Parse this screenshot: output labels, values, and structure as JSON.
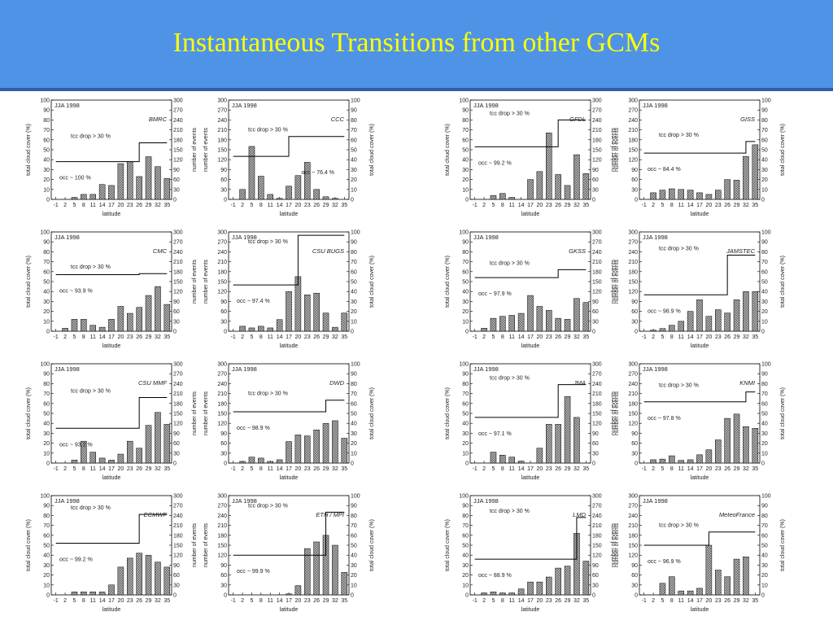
{
  "title": "Instantaneous Transitions from other GCMs",
  "colors": {
    "header_bg": "#4f93e6",
    "title_text": "#ffff00",
    "bar_fill": "#555555"
  },
  "panel_common": {
    "season": "JJA 1998",
    "xlabel": "latitude",
    "ylabel_left": "total cloud cover (%)",
    "ylabel_right_events": "number of events",
    "ylabel_right_cloud": "total cloud cover (%)",
    "tcc_label": "tcc drop > 30 %",
    "x_ticks": [
      "-1",
      "2",
      "5",
      "8",
      "11",
      "14",
      "17",
      "20",
      "23",
      "26",
      "29",
      "32",
      "35"
    ],
    "left_ticks": [
      "0",
      "10",
      "20",
      "30",
      "40",
      "50",
      "60",
      "70",
      "80",
      "90",
      "100"
    ],
    "events_ticks": [
      "0",
      "30",
      "60",
      "90",
      "120",
      "150",
      "180",
      "210",
      "240",
      "270",
      "300"
    ]
  },
  "chart_data": [
    {
      "type": "bar",
      "model": "BMRC",
      "occ": "occ ~ 100 %",
      "right_axis": "events",
      "ylim": [
        0,
        100
      ],
      "right_ylim": [
        0,
        300
      ],
      "categories": [
        "-1",
        "2",
        "5",
        "8",
        "11",
        "14",
        "17",
        "20",
        "23",
        "26",
        "29",
        "32",
        "35"
      ],
      "values": [
        0,
        0,
        2,
        5,
        5,
        15,
        14,
        36,
        38,
        23,
        43,
        33,
        21
      ],
      "step": {
        "low": 38,
        "high": 57,
        "at": "26"
      }
    },
    {
      "type": "bar",
      "model": "CCC",
      "occ": "occ ~ 76.4 %",
      "right_axis": "cloud",
      "ylim": [
        0,
        300
      ],
      "right_ylim": [
        0,
        100
      ],
      "categories": [
        "-1",
        "2",
        "5",
        "8",
        "11",
        "14",
        "17",
        "20",
        "23",
        "26",
        "29",
        "32",
        "35"
      ],
      "values": [
        0,
        30,
        160,
        70,
        15,
        3,
        40,
        72,
        112,
        30,
        8,
        3,
        0
      ],
      "step": {
        "low": 130,
        "high": 190,
        "at": "17"
      }
    },
    {
      "type": "bar",
      "model": "GFDL",
      "occ": "occ ~ 99.2 %",
      "right_axis": "events",
      "ylim": [
        0,
        100
      ],
      "right_ylim": [
        0,
        300
      ],
      "categories": [
        "-1",
        "2",
        "5",
        "8",
        "11",
        "14",
        "17",
        "20",
        "23",
        "26",
        "29",
        "32",
        "35"
      ],
      "values": [
        0,
        0,
        4,
        6,
        2,
        0,
        20,
        28,
        67,
        25,
        14,
        45,
        26
      ],
      "step": {
        "low": 53,
        "high": 80,
        "at": "26"
      }
    },
    {
      "type": "bar",
      "model": "GISS",
      "occ": "occ ~ 84.4 %",
      "right_axis": "cloud",
      "ylim": [
        0,
        300
      ],
      "right_ylim": [
        0,
        100
      ],
      "categories": [
        "-1",
        "2",
        "5",
        "8",
        "11",
        "14",
        "17",
        "20",
        "23",
        "26",
        "29",
        "32",
        "35"
      ],
      "values": [
        0,
        20,
        28,
        32,
        30,
        28,
        20,
        15,
        28,
        60,
        58,
        130,
        165
      ],
      "step": {
        "low": 140,
        "high": 175,
        "at": "32"
      }
    },
    {
      "type": "bar",
      "model": "CMC",
      "occ": "occ ~ 93.9 %",
      "right_axis": "events",
      "ylim": [
        0,
        100
      ],
      "right_ylim": [
        0,
        300
      ],
      "categories": [
        "-1",
        "2",
        "5",
        "8",
        "11",
        "14",
        "17",
        "20",
        "23",
        "26",
        "29",
        "32",
        "35"
      ],
      "values": [
        0,
        3,
        12,
        12,
        6,
        4,
        12,
        25,
        18,
        24,
        36,
        45,
        27
      ],
      "step": {
        "low": 57,
        "high": 58,
        "at": "26"
      }
    },
    {
      "type": "bar",
      "model": "CSU BUGS",
      "occ": "occ ~ 97.4 %",
      "right_axis": "cloud",
      "ylim": [
        0,
        300
      ],
      "right_ylim": [
        0,
        100
      ],
      "categories": [
        "-1",
        "2",
        "5",
        "8",
        "11",
        "14",
        "17",
        "20",
        "23",
        "26",
        "29",
        "32",
        "35"
      ],
      "values": [
        0,
        15,
        10,
        15,
        10,
        35,
        120,
        165,
        110,
        115,
        55,
        12,
        55
      ],
      "step": {
        "low": 140,
        "high": 290,
        "at": "20"
      }
    },
    {
      "type": "bar",
      "model": "GKSS",
      "occ": "occ ~ 97.9 %",
      "right_axis": "events",
      "ylim": [
        0,
        100
      ],
      "right_ylim": [
        0,
        300
      ],
      "categories": [
        "-1",
        "2",
        "5",
        "8",
        "11",
        "14",
        "17",
        "20",
        "23",
        "26",
        "29",
        "32",
        "35"
      ],
      "values": [
        0,
        3,
        13,
        15,
        16,
        18,
        36,
        25,
        21,
        13,
        12,
        33,
        29
      ],
      "step": {
        "low": 54,
        "high": 62,
        "at": "26"
      }
    },
    {
      "type": "bar",
      "model": "JAMSTEC",
      "occ": "occ ~ 98.9 %",
      "right_axis": "cloud",
      "ylim": [
        0,
        300
      ],
      "right_ylim": [
        0,
        100
      ],
      "categories": [
        "-1",
        "2",
        "5",
        "8",
        "11",
        "14",
        "17",
        "20",
        "23",
        "26",
        "29",
        "32",
        "35"
      ],
      "values": [
        0,
        3,
        8,
        18,
        30,
        60,
        95,
        45,
        65,
        55,
        95,
        120,
        120
      ],
      "step": {
        "low": 110,
        "high": 230,
        "at": "26"
      }
    },
    {
      "type": "bar",
      "model": "CSU MMF",
      "occ": "occ ~ 93.2 %",
      "right_axis": "events",
      "ylim": [
        0,
        100
      ],
      "right_ylim": [
        0,
        300
      ],
      "categories": [
        "-1",
        "2",
        "5",
        "8",
        "11",
        "14",
        "17",
        "20",
        "23",
        "26",
        "29",
        "32",
        "35"
      ],
      "values": [
        0,
        0,
        3,
        22,
        11,
        5,
        3,
        9,
        22,
        15,
        38,
        51,
        39
      ],
      "step": {
        "low": 35,
        "high": 66,
        "at": "26"
      }
    },
    {
      "type": "bar",
      "model": "DWD",
      "occ": "occ ~ 98.9 %",
      "right_axis": "cloud",
      "ylim": [
        0,
        300
      ],
      "right_ylim": [
        0,
        100
      ],
      "categories": [
        "-1",
        "2",
        "5",
        "8",
        "11",
        "14",
        "17",
        "20",
        "23",
        "26",
        "29",
        "32",
        "35"
      ],
      "values": [
        0,
        5,
        18,
        15,
        5,
        10,
        65,
        85,
        82,
        100,
        120,
        128,
        75
      ],
      "step": {
        "low": 155,
        "high": 190,
        "at": "29"
      }
    },
    {
      "type": "bar",
      "model": "JMA",
      "occ": "occ ~ 97.1 %",
      "right_axis": "events",
      "ylim": [
        0,
        100
      ],
      "right_ylim": [
        0,
        300
      ],
      "categories": [
        "-1",
        "2",
        "5",
        "8",
        "11",
        "14",
        "17",
        "20",
        "23",
        "26",
        "29",
        "32",
        "35"
      ],
      "values": [
        0,
        0,
        11,
        8,
        6,
        2,
        0,
        15,
        39,
        39,
        67,
        46,
        0
      ],
      "step": {
        "low": 46,
        "high": 79,
        "at": "26"
      }
    },
    {
      "type": "bar",
      "model": "KNMI",
      "occ": "occ ~ 97.8 %",
      "right_axis": "cloud",
      "ylim": [
        0,
        300
      ],
      "right_ylim": [
        0,
        100
      ],
      "categories": [
        "-1",
        "2",
        "5",
        "8",
        "11",
        "14",
        "17",
        "20",
        "23",
        "26",
        "29",
        "32",
        "35"
      ],
      "values": [
        0,
        10,
        12,
        22,
        8,
        10,
        25,
        40,
        70,
        135,
        148,
        110,
        105
      ],
      "step": {
        "low": 185,
        "high": 215,
        "at": "32"
      }
    },
    {
      "type": "bar",
      "model": "ECMWF",
      "occ": "occ ~ 99.2 %",
      "right_axis": "events",
      "ylim": [
        0,
        100
      ],
      "right_ylim": [
        0,
        300
      ],
      "categories": [
        "-1",
        "2",
        "5",
        "8",
        "11",
        "14",
        "17",
        "20",
        "23",
        "26",
        "29",
        "32",
        "35"
      ],
      "values": [
        0,
        0,
        3,
        3,
        3,
        3,
        10,
        28,
        37,
        42,
        40,
        33,
        28
      ],
      "step": {
        "low": 52,
        "high": 81,
        "at": "26"
      }
    },
    {
      "type": "bar",
      "model": "ETH / MPI",
      "occ": "occ ~ 99.9 %",
      "right_axis": "cloud",
      "ylim": [
        0,
        300
      ],
      "right_ylim": [
        0,
        100
      ],
      "categories": [
        "-1",
        "2",
        "5",
        "8",
        "11",
        "14",
        "17",
        "20",
        "23",
        "26",
        "29",
        "32",
        "35"
      ],
      "values": [
        0,
        0,
        0,
        0,
        0,
        0,
        3,
        28,
        140,
        160,
        180,
        150,
        68
      ],
      "step": {
        "low": 120,
        "high": 250,
        "at": "29"
      }
    },
    {
      "type": "bar",
      "model": "LMD",
      "occ": "occ ~ 88.9 %",
      "right_axis": "events",
      "ylim": [
        0,
        100
      ],
      "right_ylim": [
        0,
        300
      ],
      "categories": [
        "-1",
        "2",
        "5",
        "8",
        "11",
        "14",
        "17",
        "20",
        "23",
        "26",
        "29",
        "32",
        "35"
      ],
      "values": [
        0,
        2,
        3,
        2,
        2,
        6,
        13,
        13,
        18,
        27,
        29,
        62,
        34
      ],
      "step": {
        "low": 36,
        "high": 78,
        "at": "32"
      }
    },
    {
      "type": "bar",
      "model": "MeteoFrance",
      "occ": "occ ~ 96.9 %",
      "right_axis": "cloud",
      "ylim": [
        0,
        300
      ],
      "right_ylim": [
        0,
        100
      ],
      "categories": [
        "-1",
        "2",
        "5",
        "8",
        "11",
        "14",
        "17",
        "20",
        "23",
        "26",
        "29",
        "32",
        "35"
      ],
      "values": [
        0,
        0,
        35,
        55,
        12,
        12,
        20,
        150,
        75,
        55,
        108,
        115,
        0
      ],
      "step": {
        "low": 150,
        "high": 190,
        "at": "20"
      }
    }
  ]
}
